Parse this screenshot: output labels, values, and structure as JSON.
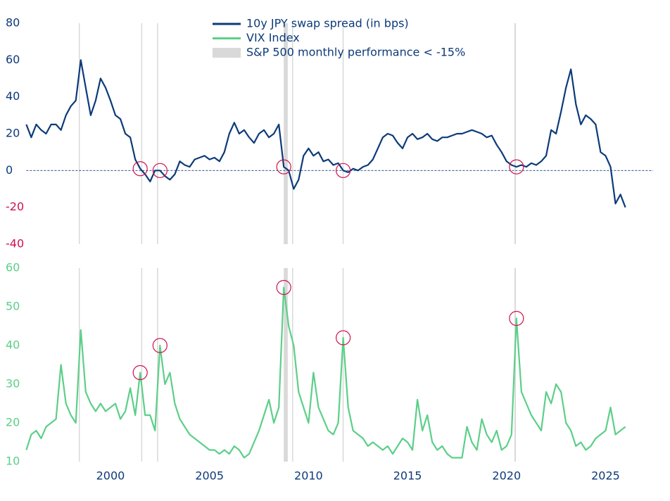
{
  "chart_data": [
    {
      "type": "line",
      "legend": "top-center",
      "tick_color": "#0c3a7a",
      "negative_tick_color": "#d0104c",
      "reference_line": 0,
      "circle_color": "#d0104c",
      "circled_x": [
        2001.5,
        2002.5,
        2008.75,
        2011.75,
        2020.5
      ],
      "shaded_periods": {
        "name": "S&P 500 monthly performance < -15%",
        "color": "#d9d9d9",
        "x": [
          [
            1998.4,
            1998.45
          ],
          [
            2001.55,
            2001.6
          ],
          [
            2002.35,
            2002.4
          ],
          [
            2008.75,
            2008.95
          ],
          [
            2009.17,
            2009.22
          ],
          [
            2011.72,
            2011.77
          ],
          [
            2020.4,
            2020.47
          ]
        ]
      },
      "xlim": [
        1995.75,
        2027.4
      ],
      "ylim": [
        -40,
        80
      ],
      "yticks": [
        -40,
        -20,
        0,
        20,
        40,
        60,
        80
      ],
      "x": [
        1995.75,
        1996,
        1996.25,
        1996.5,
        1996.75,
        1997,
        1997.25,
        1997.5,
        1997.75,
        1998,
        1998.25,
        1998.5,
        1998.75,
        1999,
        1999.25,
        1999.5,
        1999.75,
        2000,
        2000.25,
        2000.5,
        2000.75,
        2001,
        2001.25,
        2001.5,
        2001.75,
        2002,
        2002.25,
        2002.5,
        2002.75,
        2003,
        2003.25,
        2003.5,
        2003.75,
        2004,
        2004.25,
        2004.5,
        2004.75,
        2005,
        2005.25,
        2005.5,
        2005.75,
        2006,
        2006.25,
        2006.5,
        2006.75,
        2007,
        2007.25,
        2007.5,
        2007.75,
        2008,
        2008.25,
        2008.5,
        2008.75,
        2009,
        2009.25,
        2009.5,
        2009.75,
        2010,
        2010.25,
        2010.5,
        2010.75,
        2011,
        2011.25,
        2011.5,
        2011.75,
        2012,
        2012.25,
        2012.5,
        2012.75,
        2013,
        2013.25,
        2013.5,
        2013.75,
        2014,
        2014.25,
        2014.5,
        2014.75,
        2015,
        2015.25,
        2015.5,
        2015.75,
        2016,
        2016.25,
        2016.5,
        2016.75,
        2017,
        2017.25,
        2017.5,
        2017.75,
        2018,
        2018.25,
        2018.5,
        2018.75,
        2019,
        2019.25,
        2019.5,
        2019.75,
        2020,
        2020.25,
        2020.5,
        2020.75,
        2021,
        2021.25,
        2021.5,
        2021.75,
        2022,
        2022.25,
        2022.5,
        2022.75,
        2023,
        2023.25,
        2023.5,
        2023.75,
        2024,
        2024.25,
        2024.5,
        2024.75,
        2025,
        2025.25,
        2025.5,
        2025.75,
        2026
      ],
      "series": [
        {
          "name": "10y JPY swap spread (in bps)",
          "color": "#0c3a7a",
          "values": [
            25,
            18,
            25,
            22,
            20,
            25,
            25,
            22,
            30,
            35,
            38,
            60,
            45,
            30,
            38,
            50,
            45,
            38,
            30,
            28,
            20,
            18,
            6,
            1,
            -2,
            -6,
            0,
            0,
            -3,
            -5,
            -2,
            5,
            3,
            2,
            6,
            7,
            8,
            6,
            7,
            5,
            10,
            20,
            26,
            20,
            22,
            18,
            15,
            20,
            22,
            18,
            20,
            25,
            2,
            0,
            -10,
            -5,
            8,
            12,
            8,
            10,
            5,
            6,
            3,
            4,
            0,
            -1,
            1,
            0,
            2,
            3,
            6,
            12,
            18,
            20,
            19,
            15,
            12,
            18,
            20,
            17,
            18,
            20,
            17,
            16,
            18,
            18,
            19,
            20,
            20,
            21,
            22,
            21,
            20,
            18,
            19,
            14,
            10,
            5,
            3,
            2,
            3,
            2,
            4,
            3,
            5,
            8,
            22,
            20,
            32,
            45,
            55,
            36,
            25,
            30,
            28,
            25,
            10,
            8,
            2,
            -18,
            -13,
            -20
          ]
        }
      ]
    },
    {
      "type": "line",
      "tick_color": "#5ccf88",
      "circle_color": "#d0104c",
      "circled_x": [
        2001.5,
        2002.5,
        2008.75,
        2011.75,
        2020.5
      ],
      "xlim": [
        1995.75,
        2027.4
      ],
      "xticks": [
        2000,
        2005,
        2010,
        2015,
        2020,
        2025
      ],
      "ylim": [
        10,
        60
      ],
      "yticks": [
        10,
        20,
        30,
        40,
        50,
        60
      ],
      "x": [
        1995.75,
        1996,
        1996.25,
        1996.5,
        1996.75,
        1997,
        1997.25,
        1997.5,
        1997.75,
        1998,
        1998.25,
        1998.5,
        1998.75,
        1999,
        1999.25,
        1999.5,
        1999.75,
        2000,
        2000.25,
        2000.5,
        2000.75,
        2001,
        2001.25,
        2001.5,
        2001.75,
        2002,
        2002.25,
        2002.5,
        2002.75,
        2003,
        2003.25,
        2003.5,
        2003.75,
        2004,
        2004.25,
        2004.5,
        2004.75,
        2005,
        2005.25,
        2005.5,
        2005.75,
        2006,
        2006.25,
        2006.5,
        2006.75,
        2007,
        2007.25,
        2007.5,
        2007.75,
        2008,
        2008.25,
        2008.5,
        2008.75,
        2009,
        2009.25,
        2009.5,
        2009.75,
        2010,
        2010.25,
        2010.5,
        2010.75,
        2011,
        2011.25,
        2011.5,
        2011.75,
        2012,
        2012.25,
        2012.5,
        2012.75,
        2013,
        2013.25,
        2013.5,
        2013.75,
        2014,
        2014.25,
        2014.5,
        2014.75,
        2015,
        2015.25,
        2015.5,
        2015.75,
        2016,
        2016.25,
        2016.5,
        2016.75,
        2017,
        2017.25,
        2017.5,
        2017.75,
        2018,
        2018.25,
        2018.5,
        2018.75,
        2019,
        2019.25,
        2019.5,
        2019.75,
        2020,
        2020.25,
        2020.5,
        2020.75,
        2021,
        2021.25,
        2021.5,
        2021.75,
        2022,
        2022.25,
        2022.5,
        2022.75,
        2023,
        2023.25,
        2023.5,
        2023.75,
        2024,
        2024.25,
        2024.5,
        2024.75,
        2025,
        2025.25,
        2025.5,
        2025.75,
        2026
      ],
      "series": [
        {
          "name": "VIX Index",
          "color": "#5ccf88",
          "values": [
            13,
            17,
            18,
            16,
            19,
            20,
            21,
            35,
            25,
            22,
            20,
            44,
            28,
            25,
            23,
            25,
            23,
            24,
            25,
            21,
            23,
            29,
            22,
            33,
            22,
            22,
            18,
            40,
            30,
            33,
            25,
            21,
            19,
            17,
            16,
            15,
            14,
            13,
            13,
            12,
            13,
            12,
            14,
            13,
            11,
            12,
            15,
            18,
            22,
            26,
            20,
            24,
            55,
            45,
            40,
            28,
            24,
            20,
            33,
            24,
            21,
            18,
            17,
            20,
            42,
            24,
            18,
            17,
            16,
            14,
            15,
            14,
            13,
            14,
            12,
            14,
            16,
            15,
            13,
            26,
            18,
            22,
            15,
            13,
            14,
            12,
            11,
            11,
            11,
            19,
            15,
            13,
            21,
            17,
            15,
            18,
            13,
            14,
            17,
            47,
            28,
            25,
            22,
            20,
            18,
            28,
            25,
            30,
            28,
            20,
            18,
            14,
            15,
            13,
            14,
            16,
            17,
            18,
            24,
            17,
            18,
            19
          ]
        }
      ]
    }
  ]
}
